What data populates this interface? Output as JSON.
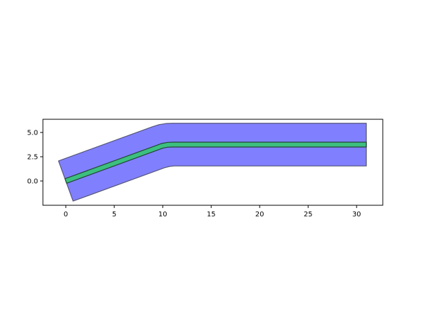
{
  "chart_data": {
    "type": "polygon",
    "title": "",
    "xlabel": "",
    "ylabel": "",
    "xlim": [
      -2.36,
      32.7
    ],
    "ylim": [
      -2.5,
      6.36
    ],
    "aspect": "equal",
    "grid": false,
    "xticks": [
      0,
      5,
      10,
      15,
      20,
      25,
      30
    ],
    "xtick_labels": [
      "0",
      "5",
      "10",
      "15",
      "20",
      "25",
      "30"
    ],
    "yticks": [
      0,
      2.5,
      5
    ],
    "ytick_labels": [
      "0.0",
      "2.5",
      "5.0"
    ],
    "shapes": [
      {
        "fill": "#8080ff",
        "edge": "#555577",
        "points": [
          [
            -0.75,
            2.07
          ],
          [
            8.9,
            5.58
          ],
          [
            9.6,
            5.8
          ],
          [
            10.3,
            5.92
          ],
          [
            11,
            5.95
          ],
          [
            31,
            5.95
          ],
          [
            31,
            1.55
          ],
          [
            11.2,
            1.55
          ],
          [
            10.7,
            1.5
          ],
          [
            10.2,
            1.37
          ],
          [
            0.75,
            -2.07
          ]
        ]
      },
      {
        "fill": "#3cbf7f",
        "edge": "#224433",
        "points": [
          [
            -0.086,
            0.235
          ],
          [
            9.3,
            3.65
          ],
          [
            9.9,
            3.87
          ],
          [
            10.5,
            3.98
          ],
          [
            11,
            4.0
          ],
          [
            31,
            4.0
          ],
          [
            31,
            3.5
          ],
          [
            11,
            3.5
          ],
          [
            10.5,
            3.48
          ],
          [
            10,
            3.38
          ],
          [
            0.086,
            -0.235
          ]
        ]
      }
    ]
  }
}
